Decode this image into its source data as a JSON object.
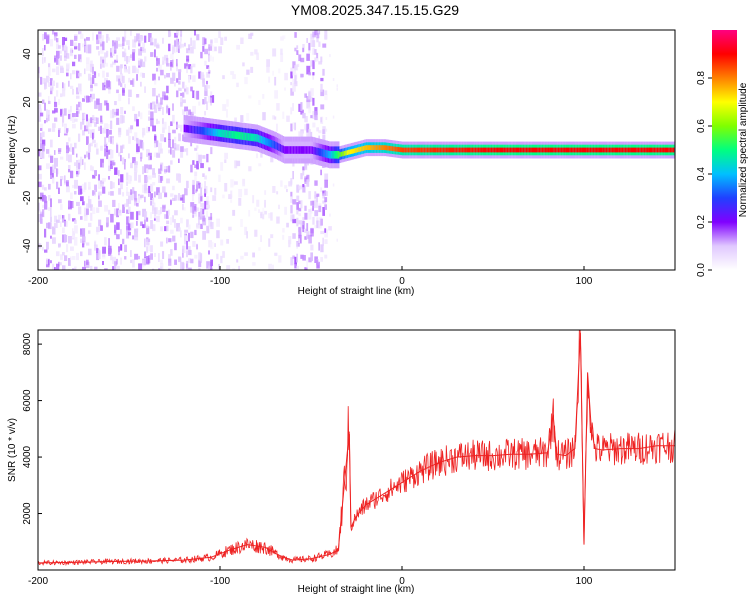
{
  "figure": {
    "title": "YM08.2025.347.15.15.G29"
  },
  "chart_data": [
    {
      "type": "heatmap",
      "xlabel": "Height of straight line (km)",
      "ylabel": "Frequency (Hz)",
      "xlim": [
        -200,
        150
      ],
      "ylim": [
        -50,
        50
      ],
      "xticks": [
        -200,
        -100,
        0,
        100
      ],
      "yticks": [
        -40,
        -20,
        0,
        20,
        40
      ],
      "colorbar": {
        "label": "Normalized spectral amplitude",
        "range": [
          0.0,
          1.0
        ],
        "ticks": [
          "0.0",
          "0.2",
          "0.4",
          "0.6",
          "0.8"
        ],
        "tick_values": [
          0.0,
          0.2,
          0.4,
          0.6,
          0.8
        ],
        "colormap": [
          "#ffffff",
          "#e0c8ff",
          "#8000ff",
          "#2040ff",
          "#00c0ff",
          "#00ff80",
          "#80ff00",
          "#ffff00",
          "#ff8000",
          "#ff0000",
          "#ff0080"
        ]
      },
      "ridge": {
        "x": [
          -120,
          -110,
          -100,
          -90,
          -80,
          -70,
          -65,
          -50,
          -45,
          -40,
          -35,
          -30,
          -20,
          -10,
          0,
          50,
          100,
          150
        ],
        "frequency": [
          9,
          8,
          7,
          6,
          5,
          2,
          0,
          0,
          -1,
          -2,
          -2,
          -1,
          1,
          1,
          0,
          0,
          0,
          0
        ],
        "amplitude": [
          0.2,
          0.3,
          0.45,
          0.5,
          0.45,
          0.3,
          0.2,
          0.2,
          0.3,
          0.4,
          0.55,
          0.7,
          0.75,
          0.8,
          0.85,
          0.9,
          0.9,
          0.9
        ]
      },
      "noise": {
        "dense_x_ranges": [
          [
            -200,
            -105
          ],
          [
            -62,
            -42
          ]
        ],
        "sparse_x_ranges": [
          [
            -105,
            -62
          ]
        ],
        "quiet_from_x": -42
      }
    },
    {
      "type": "line",
      "xlabel": "Height of straight line (km)",
      "ylabel": "SNR (10 * v/v)",
      "xlim": [
        -200,
        150
      ],
      "ylim": [
        0,
        8500
      ],
      "xticks": [
        -200,
        -100,
        0,
        100
      ],
      "yticks": [
        2000,
        4000,
        6000,
        8000
      ],
      "color": "#ee2222",
      "x": [
        -200,
        -180,
        -160,
        -140,
        -120,
        -105,
        -95,
        -90,
        -85,
        -80,
        -75,
        -70,
        -65,
        -60,
        -50,
        -40,
        -35,
        -29,
        -28,
        -26,
        -24,
        -20,
        -10,
        0,
        10,
        20,
        30,
        40,
        50,
        60,
        70,
        80,
        83,
        85,
        90,
        95,
        98,
        100,
        102,
        104,
        106,
        110,
        120,
        130,
        140,
        150
      ],
      "y": [
        250,
        270,
        300,
        320,
        350,
        450,
        700,
        800,
        900,
        850,
        800,
        600,
        450,
        350,
        400,
        550,
        700,
        4900,
        1500,
        1800,
        2000,
        2300,
        2700,
        3100,
        3500,
        3800,
        4000,
        4050,
        4050,
        4100,
        4100,
        4150,
        5500,
        4100,
        4050,
        4300,
        8400,
        900,
        7000,
        5000,
        4300,
        4250,
        4300,
        4300,
        4400,
        4400
      ]
    }
  ]
}
